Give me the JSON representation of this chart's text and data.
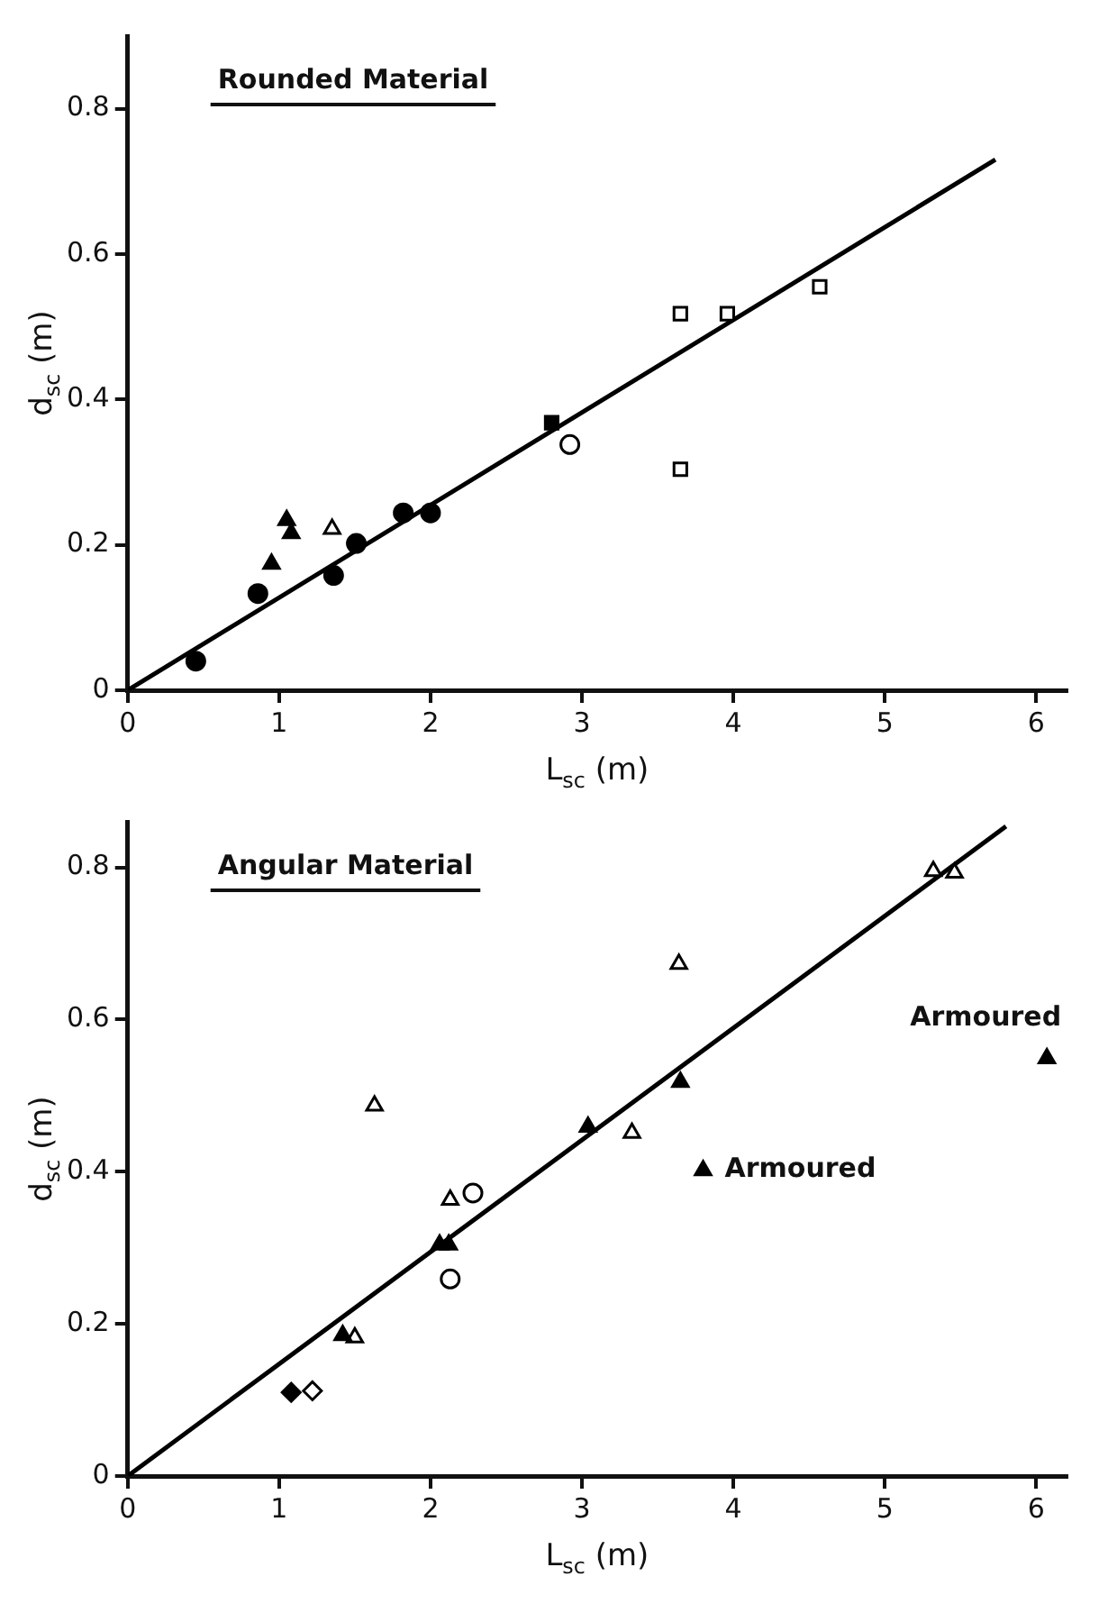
{
  "chart_data": [
    {
      "type": "scatter",
      "title": "Rounded Material",
      "xlabel": "L$_{sc}$ (m)",
      "ylabel": "d$_{sc}$ (m)",
      "xlim": [
        0,
        6.2
      ],
      "ylim": [
        0,
        0.9
      ],
      "xticks": [
        0,
        1,
        2,
        3,
        4,
        5,
        6
      ],
      "yticks": [
        0,
        0.2,
        0.4,
        0.6,
        0.8
      ],
      "grid": false,
      "legend": false,
      "series": [
        {
          "marker": "circle",
          "color": "#000000",
          "x": [
            0.45,
            0.86,
            1.36,
            1.51,
            1.82,
            2.0
          ],
          "values": [
            0.04,
            0.133,
            0.158,
            0.202,
            0.244,
            0.244
          ]
        },
        {
          "marker": "triangle",
          "color": "#000000",
          "x": [
            0.95,
            1.05,
            1.08
          ],
          "values": [
            0.174,
            0.234,
            0.216
          ]
        },
        {
          "marker": "triangle",
          "color": "#ffffff",
          "x": [
            1.35
          ],
          "values": [
            0.222
          ]
        },
        {
          "marker": "square",
          "color": "#000000",
          "x": [
            2.8
          ],
          "values": [
            0.368
          ]
        },
        {
          "marker": "circle",
          "color": "#ffffff",
          "x": [
            2.92
          ],
          "values": [
            0.338
          ]
        },
        {
          "marker": "square",
          "color": "#ffffff",
          "x": [
            3.65,
            3.65,
            3.96,
            4.57
          ],
          "values": [
            0.304,
            0.518,
            0.518,
            0.555
          ]
        },
        {
          "type": "line",
          "marker": "none",
          "color": "#000000",
          "x": [
            0,
            5.73
          ],
          "values": [
            0,
            0.73
          ]
        }
      ]
    },
    {
      "type": "scatter",
      "title": "Angular Material",
      "xlabel": "L$_{sc}$ (m)",
      "ylabel": "d$_{sc}$ (m)",
      "xlim": [
        0,
        6.2
      ],
      "ylim": [
        0,
        0.86
      ],
      "xticks": [
        0,
        1,
        2,
        3,
        4,
        5,
        6
      ],
      "yticks": [
        0,
        0.2,
        0.4,
        0.6,
        0.8
      ],
      "grid": false,
      "legend": false,
      "annotations": [
        {
          "text": "Armoured",
          "x": 3.8,
          "y": 0.402
        },
        {
          "text": "Armoured",
          "x": 6.07,
          "y": 0.549
        }
      ],
      "series": [
        {
          "marker": "diamond",
          "color": "#000000",
          "x": [
            1.08
          ],
          "values": [
            0.11
          ]
        },
        {
          "marker": "diamond",
          "color": "#ffffff",
          "x": [
            1.22
          ],
          "values": [
            0.112
          ]
        },
        {
          "marker": "triangle",
          "color": "#000000",
          "x": [
            1.42,
            2.06,
            2.12,
            3.04,
            3.65,
            3.8,
            6.07
          ],
          "values": [
            0.185,
            0.304,
            0.304,
            0.459,
            0.518,
            0.402,
            0.549
          ]
        },
        {
          "marker": "triangle",
          "color": "#ffffff",
          "x": [
            1.5,
            1.63,
            2.13,
            3.33,
            5.32,
            3.64,
            5.46
          ],
          "values": [
            0.182,
            0.487,
            0.363,
            0.451,
            0.795,
            0.673,
            0.793
          ]
        },
        {
          "marker": "circle",
          "color": "#ffffff",
          "x": [
            2.28,
            2.13
          ],
          "values": [
            0.372,
            0.259
          ]
        },
        {
          "type": "line",
          "marker": "none",
          "color": "#000000",
          "x": [
            0,
            5.8
          ],
          "values": [
            0,
            0.854
          ]
        }
      ]
    }
  ]
}
